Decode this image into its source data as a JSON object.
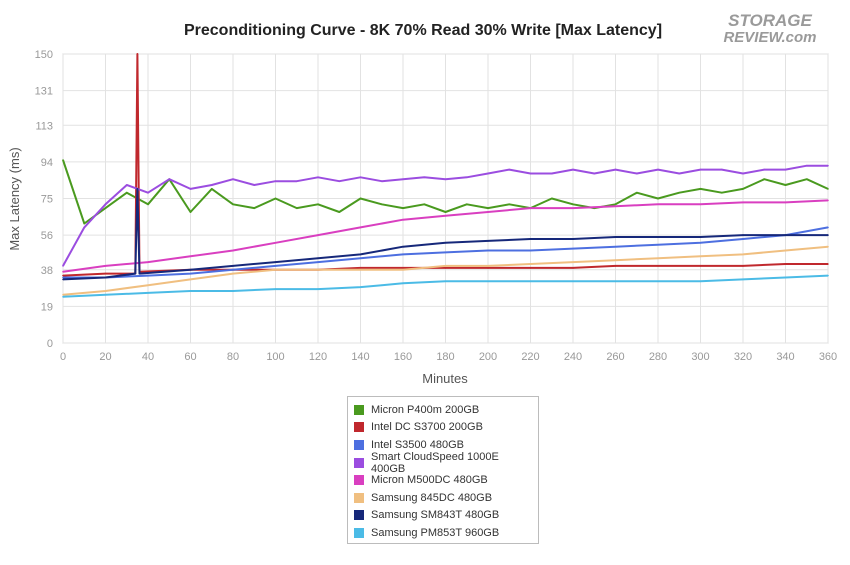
{
  "chart_data": {
    "type": "line",
    "title": "Preconditioning Curve - 8K 70% Read 30% Write [Max Latency]",
    "xlabel": "Minutes",
    "ylabel": "Max Latency (ms)",
    "xlim": [
      0,
      360
    ],
    "ylim": [
      0,
      150
    ],
    "xticks": [
      0,
      20,
      40,
      60,
      80,
      100,
      120,
      140,
      160,
      180,
      200,
      220,
      240,
      260,
      280,
      300,
      320,
      340,
      360
    ],
    "yticks": [
      0,
      19,
      38,
      56,
      75,
      94,
      113,
      131,
      150
    ],
    "grid": true,
    "legend_position": "bottom",
    "series": [
      {
        "name": "Micron P400m 200GB",
        "color": "#4a9a1f",
        "points": [
          [
            0,
            95
          ],
          [
            10,
            62
          ],
          [
            20,
            70
          ],
          [
            30,
            78
          ],
          [
            40,
            72
          ],
          [
            50,
            85
          ],
          [
            60,
            68
          ],
          [
            70,
            80
          ],
          [
            80,
            72
          ],
          [
            90,
            70
          ],
          [
            100,
            75
          ],
          [
            110,
            70
          ],
          [
            120,
            72
          ],
          [
            130,
            68
          ],
          [
            140,
            75
          ],
          [
            150,
            72
          ],
          [
            160,
            70
          ],
          [
            170,
            72
          ],
          [
            180,
            68
          ],
          [
            190,
            72
          ],
          [
            200,
            70
          ],
          [
            210,
            72
          ],
          [
            220,
            70
          ],
          [
            230,
            75
          ],
          [
            240,
            72
          ],
          [
            250,
            70
          ],
          [
            260,
            72
          ],
          [
            270,
            78
          ],
          [
            280,
            75
          ],
          [
            290,
            78
          ],
          [
            300,
            80
          ],
          [
            310,
            78
          ],
          [
            320,
            80
          ],
          [
            330,
            85
          ],
          [
            340,
            82
          ],
          [
            350,
            85
          ],
          [
            360,
            80
          ]
        ]
      },
      {
        "name": "Intel DC S3700 200GB",
        "color": "#c0282d",
        "points": [
          [
            0,
            35
          ],
          [
            20,
            36
          ],
          [
            34,
            36
          ],
          [
            35,
            150
          ],
          [
            36,
            37
          ],
          [
            60,
            38
          ],
          [
            80,
            38
          ],
          [
            100,
            38
          ],
          [
            120,
            38
          ],
          [
            140,
            39
          ],
          [
            160,
            39
          ],
          [
            180,
            39
          ],
          [
            200,
            39
          ],
          [
            220,
            39
          ],
          [
            240,
            39
          ],
          [
            260,
            40
          ],
          [
            280,
            40
          ],
          [
            300,
            40
          ],
          [
            320,
            40
          ],
          [
            340,
            41
          ],
          [
            360,
            41
          ]
        ]
      },
      {
        "name": "Intel S3500 480GB",
        "color": "#4d6fe0",
        "points": [
          [
            0,
            34
          ],
          [
            20,
            34
          ],
          [
            40,
            35
          ],
          [
            60,
            36
          ],
          [
            80,
            38
          ],
          [
            100,
            40
          ],
          [
            120,
            42
          ],
          [
            140,
            44
          ],
          [
            160,
            46
          ],
          [
            180,
            47
          ],
          [
            200,
            48
          ],
          [
            220,
            48
          ],
          [
            240,
            49
          ],
          [
            260,
            50
          ],
          [
            280,
            51
          ],
          [
            300,
            52
          ],
          [
            320,
            54
          ],
          [
            340,
            56
          ],
          [
            360,
            60
          ]
        ]
      },
      {
        "name": "Smart CloudSpeed 1000E 400GB",
        "color": "#9b4de0",
        "points": [
          [
            0,
            40
          ],
          [
            10,
            60
          ],
          [
            20,
            72
          ],
          [
            30,
            82
          ],
          [
            40,
            78
          ],
          [
            50,
            85
          ],
          [
            60,
            80
          ],
          [
            70,
            82
          ],
          [
            80,
            85
          ],
          [
            90,
            82
          ],
          [
            100,
            84
          ],
          [
            110,
            84
          ],
          [
            120,
            86
          ],
          [
            130,
            84
          ],
          [
            140,
            86
          ],
          [
            150,
            84
          ],
          [
            160,
            85
          ],
          [
            170,
            86
          ],
          [
            180,
            85
          ],
          [
            190,
            86
          ],
          [
            200,
            88
          ],
          [
            210,
            90
          ],
          [
            220,
            88
          ],
          [
            230,
            88
          ],
          [
            240,
            90
          ],
          [
            250,
            88
          ],
          [
            260,
            90
          ],
          [
            270,
            88
          ],
          [
            280,
            90
          ],
          [
            290,
            88
          ],
          [
            300,
            90
          ],
          [
            310,
            90
          ],
          [
            320,
            88
          ],
          [
            330,
            90
          ],
          [
            340,
            90
          ],
          [
            350,
            92
          ],
          [
            360,
            92
          ]
        ]
      },
      {
        "name": "Micron M500DC 480GB",
        "color": "#d93fc0",
        "points": [
          [
            0,
            37
          ],
          [
            20,
            40
          ],
          [
            40,
            42
          ],
          [
            60,
            45
          ],
          [
            80,
            48
          ],
          [
            100,
            52
          ],
          [
            120,
            56
          ],
          [
            140,
            60
          ],
          [
            160,
            64
          ],
          [
            180,
            66
          ],
          [
            200,
            68
          ],
          [
            220,
            70
          ],
          [
            240,
            70
          ],
          [
            260,
            71
          ],
          [
            280,
            72
          ],
          [
            300,
            72
          ],
          [
            320,
            73
          ],
          [
            340,
            73
          ],
          [
            360,
            74
          ]
        ]
      },
      {
        "name": "Samsung 845DC 480GB",
        "color": "#f0bf80",
        "points": [
          [
            0,
            25
          ],
          [
            20,
            27
          ],
          [
            40,
            30
          ],
          [
            60,
            33
          ],
          [
            80,
            36
          ],
          [
            100,
            38
          ],
          [
            120,
            38
          ],
          [
            140,
            38
          ],
          [
            160,
            38
          ],
          [
            180,
            40
          ],
          [
            200,
            40
          ],
          [
            220,
            41
          ],
          [
            240,
            42
          ],
          [
            260,
            43
          ],
          [
            280,
            44
          ],
          [
            300,
            45
          ],
          [
            320,
            46
          ],
          [
            340,
            48
          ],
          [
            360,
            50
          ]
        ]
      },
      {
        "name": "Samsung SM843T 480GB",
        "color": "#16287a",
        "points": [
          [
            0,
            33
          ],
          [
            20,
            34
          ],
          [
            34,
            36
          ],
          [
            35,
            80
          ],
          [
            36,
            36
          ],
          [
            60,
            38
          ],
          [
            80,
            40
          ],
          [
            100,
            42
          ],
          [
            120,
            44
          ],
          [
            140,
            46
          ],
          [
            160,
            50
          ],
          [
            180,
            52
          ],
          [
            200,
            53
          ],
          [
            220,
            54
          ],
          [
            240,
            54
          ],
          [
            260,
            55
          ],
          [
            280,
            55
          ],
          [
            300,
            55
          ],
          [
            320,
            56
          ],
          [
            340,
            56
          ],
          [
            360,
            56
          ]
        ]
      },
      {
        "name": "Samsung PM853T 960GB",
        "color": "#4bbbe6",
        "points": [
          [
            0,
            24
          ],
          [
            20,
            25
          ],
          [
            40,
            26
          ],
          [
            60,
            27
          ],
          [
            80,
            27
          ],
          [
            100,
            28
          ],
          [
            120,
            28
          ],
          [
            140,
            29
          ],
          [
            150,
            30
          ],
          [
            160,
            31
          ],
          [
            180,
            32
          ],
          [
            200,
            32
          ],
          [
            220,
            32
          ],
          [
            240,
            32
          ],
          [
            260,
            32
          ],
          [
            280,
            32
          ],
          [
            300,
            32
          ],
          [
            320,
            33
          ],
          [
            340,
            34
          ],
          [
            360,
            35
          ]
        ]
      }
    ]
  },
  "logo": {
    "line1": "STORAGE",
    "line2": "REVIEW.com",
    "color": "#9a9a9a"
  }
}
